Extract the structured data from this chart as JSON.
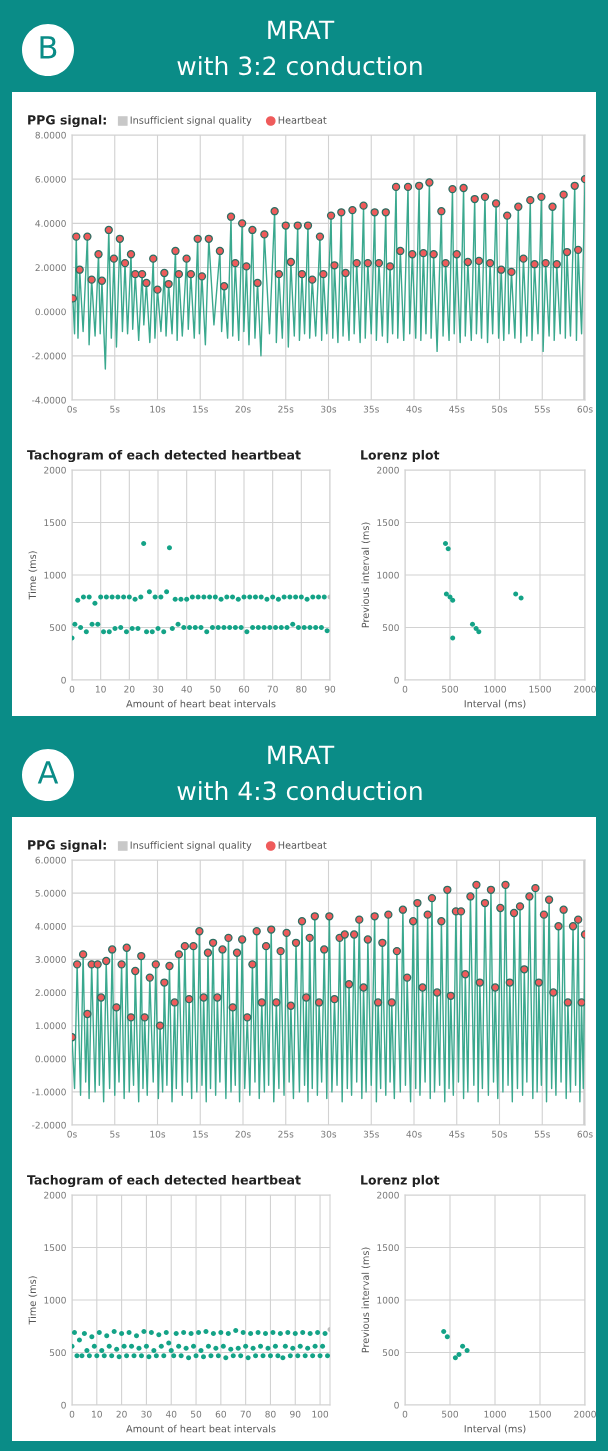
{
  "chart_data": [
    {
      "type": "line",
      "title": "PPG signal:",
      "legend": "top left",
      "grid": true,
      "xlim": [
        0,
        60
      ],
      "xticks": [
        {
          "value": 0,
          "label": "0s"
        },
        {
          "value": 5,
          "label": "5s"
        },
        {
          "value": 10,
          "label": "10s"
        },
        {
          "value": 15,
          "label": "15s"
        },
        {
          "value": 20,
          "label": "20s"
        },
        {
          "value": 25,
          "label": "25s"
        },
        {
          "value": 30,
          "label": "30s"
        },
        {
          "value": 35,
          "label": "35s"
        },
        {
          "value": 40,
          "label": "40s"
        },
        {
          "value": 45,
          "label": "45s"
        },
        {
          "value": 50,
          "label": "50s"
        },
        {
          "value": 55,
          "label": "55s"
        },
        {
          "value": 60,
          "label": "60s"
        }
      ],
      "ylim": [
        -4,
        8
      ],
      "yticks": [
        {
          "value": -4,
          "label": "-4.0000"
        },
        {
          "value": -2,
          "label": "-2.0000"
        },
        {
          "value": 0,
          "label": "0.0000"
        },
        {
          "value": 2,
          "label": "2.0000"
        },
        {
          "value": 4,
          "label": "4.0000"
        },
        {
          "value": 6,
          "label": "6.0000"
        },
        {
          "value": 8,
          "label": "8.0000"
        }
      ],
      "bands": [
        {
          "axis": "x",
          "from": 59.8,
          "to": 60,
          "label": "Insufficient signal quality",
          "color": "#c8c8c8"
        }
      ],
      "series": [
        {
          "type": "line",
          "color": "#3aa88e",
          "x": [
            0.1,
            0.3,
            0.5,
            0.7,
            0.9,
            1.3,
            1.8,
            2.0,
            2.3,
            2.7,
            3.1,
            3.3,
            3.5,
            3.9,
            4.3,
            4.6,
            4.9,
            5.2,
            5.6,
            5.9,
            6.2,
            6.5,
            6.9,
            7.1,
            7.4,
            7.8,
            8.2,
            8.4,
            8.7,
            9.1,
            9.5,
            9.7,
            10.0,
            10.4,
            10.8,
            11.0,
            11.3,
            11.7,
            12.1,
            12.3,
            12.5,
            12.9,
            13.4,
            13.6,
            13.9,
            14.3,
            14.7,
            14.9,
            15.2,
            15.6,
            16.0,
            16.6,
            17.3,
            17.5,
            17.8,
            18.2,
            18.6,
            18.8,
            19.1,
            19.5,
            19.9,
            20.1,
            20.4,
            20.7,
            21.1,
            21.4,
            21.7,
            22.1,
            22.5,
            23.1,
            23.7,
            23.9,
            24.2,
            24.6,
            25.0,
            25.3,
            25.6,
            26.0,
            26.4,
            26.6,
            26.9,
            27.2,
            27.6,
            27.8,
            28.1,
            28.5,
            29.0,
            29.2,
            29.4,
            29.8,
            30.3,
            30.5,
            30.7,
            31.1,
            31.5,
            31.7,
            32.0,
            32.4,
            32.8,
            33.0,
            33.3,
            33.7,
            34.1,
            34.3,
            34.6,
            35.0,
            35.4,
            35.6,
            35.9,
            36.3,
            36.7,
            36.9,
            37.2,
            37.5,
            37.9,
            38.1,
            38.4,
            38.8,
            39.3,
            39.5,
            39.8,
            40.2,
            40.6,
            40.8,
            41.1,
            41.4,
            41.8,
            42.0,
            42.3,
            42.7,
            43.2,
            43.4,
            43.7,
            44.1,
            44.5,
            44.7,
            45.0,
            45.4,
            45.8,
            46.0,
            46.3,
            46.7,
            47.1,
            47.3,
            47.6,
            47.9,
            48.3,
            48.6,
            48.9,
            49.2,
            49.6,
            49.9,
            50.2,
            50.5,
            50.9,
            51.1,
            51.4,
            51.8,
            52.2,
            52.5,
            52.8,
            53.2,
            53.6,
            53.8,
            54.1,
            54.5,
            54.9,
            55.1,
            55.4,
            55.8,
            56.2,
            56.4,
            56.7,
            57.1,
            57.5,
            57.7,
            57.9,
            58.3,
            58.8,
            59.0,
            59.2,
            59.6,
            60.0
          ],
          "values": [
            0.6,
            -1.0,
            3.4,
            -1.2,
            1.9,
            -0.9,
            3.4,
            -1.5,
            1.45,
            -1.1,
            2.6,
            -1.0,
            1.4,
            -2.6,
            3.7,
            -1.2,
            2.4,
            -1.6,
            3.3,
            -0.9,
            2.2,
            -1.0,
            2.6,
            -0.8,
            1.7,
            -1.3,
            1.7,
            -0.6,
            1.3,
            -1.4,
            2.4,
            -1.2,
            1.0,
            -0.9,
            1.75,
            -1.1,
            1.25,
            -1.0,
            2.75,
            -1.3,
            1.7,
            -1.1,
            2.4,
            -0.8,
            1.7,
            -1.2,
            3.3,
            -1.0,
            1.6,
            -1.5,
            3.3,
            -0.6,
            2.75,
            -0.9,
            1.15,
            -1.2,
            4.3,
            -1.1,
            2.2,
            -1.3,
            4.0,
            -0.9,
            2.05,
            -1.5,
            3.7,
            -1.2,
            1.3,
            -2.0,
            3.5,
            -1.0,
            4.55,
            -1.4,
            1.7,
            -1.2,
            3.9,
            -1.6,
            2.25,
            -1.1,
            3.9,
            -1.3,
            1.7,
            -1.0,
            3.9,
            -1.2,
            1.45,
            -1.1,
            3.4,
            -1.3,
            1.7,
            -1.0,
            4.35,
            -1.2,
            2.1,
            -1.4,
            4.5,
            -1.1,
            1.75,
            -1.3,
            4.6,
            -1.0,
            2.2,
            -1.4,
            4.8,
            -1.2,
            2.2,
            -1.0,
            4.5,
            -1.3,
            2.2,
            -1.1,
            4.5,
            -1.4,
            2.05,
            -1.0,
            5.65,
            -1.2,
            2.75,
            -1.3,
            5.65,
            -1.0,
            2.6,
            -1.2,
            5.7,
            -1.3,
            2.65,
            -1.0,
            5.85,
            -1.2,
            2.6,
            -1.8,
            4.55,
            -1.1,
            2.2,
            -1.3,
            5.55,
            -1.0,
            2.6,
            -1.4,
            5.6,
            -1.1,
            2.25,
            -1.3,
            5.1,
            -1.0,
            2.3,
            -1.2,
            5.2,
            -1.4,
            2.2,
            -1.0,
            4.9,
            -1.2,
            1.9,
            -1.3,
            4.35,
            -1.0,
            1.8,
            -1.2,
            4.75,
            -1.4,
            2.4,
            -1.1,
            5.05,
            -1.3,
            2.15,
            -1.0,
            5.2,
            -1.8,
            2.2,
            -1.1,
            4.75,
            -1.3,
            2.15,
            -1.0,
            5.3,
            -1.2,
            2.7,
            -1.1,
            5.7,
            -1.3,
            2.8,
            -1.0,
            6.0
          ]
        },
        {
          "name": "Heartbeat",
          "type": "scatter",
          "marker": "circle",
          "color": "#ef5b5b",
          "x": [
            0.1,
            0.5,
            0.9,
            1.8,
            2.3,
            3.1,
            3.5,
            4.3,
            4.9,
            5.6,
            6.2,
            6.9,
            7.4,
            8.2,
            8.7,
            9.5,
            10.0,
            10.8,
            11.3,
            12.1,
            12.5,
            13.4,
            13.9,
            14.7,
            15.2,
            16.0,
            17.3,
            17.8,
            18.6,
            19.1,
            19.9,
            20.4,
            21.1,
            21.7,
            22.5,
            23.7,
            24.2,
            25.0,
            25.6,
            26.4,
            26.9,
            27.6,
            28.1,
            29.0,
            29.4,
            30.3,
            30.7,
            31.5,
            32.0,
            32.8,
            33.3,
            34.1,
            34.6,
            35.4,
            35.9,
            36.7,
            37.2,
            37.9,
            38.4,
            39.3,
            39.8,
            40.6,
            41.1,
            41.8,
            42.3,
            43.2,
            43.7,
            44.5,
            45.0,
            45.8,
            46.3,
            47.1,
            47.6,
            48.3,
            48.9,
            49.6,
            50.2,
            50.9,
            51.4,
            52.2,
            52.8,
            53.6,
            54.1,
            54.9,
            55.4,
            56.2,
            56.7,
            57.5,
            57.9,
            58.8,
            59.2,
            60.0
          ],
          "values": [
            0.6,
            3.4,
            1.9,
            3.4,
            1.45,
            2.6,
            1.4,
            3.7,
            2.4,
            3.3,
            2.2,
            2.6,
            1.7,
            1.7,
            1.3,
            2.4,
            1.0,
            1.75,
            1.25,
            2.75,
            1.7,
            2.4,
            1.7,
            3.3,
            1.6,
            3.3,
            2.75,
            1.15,
            4.3,
            2.2,
            4.0,
            2.05,
            3.7,
            1.3,
            3.5,
            4.55,
            1.7,
            3.9,
            2.25,
            3.9,
            1.7,
            3.9,
            1.45,
            3.4,
            1.7,
            4.35,
            2.1,
            4.5,
            1.75,
            4.6,
            2.2,
            4.8,
            2.2,
            4.5,
            2.2,
            4.5,
            2.05,
            5.65,
            2.75,
            5.65,
            2.6,
            5.7,
            2.65,
            5.85,
            2.6,
            4.55,
            2.2,
            5.55,
            2.6,
            5.6,
            2.25,
            5.1,
            2.3,
            5.2,
            2.2,
            4.9,
            1.9,
            4.35,
            1.8,
            4.75,
            2.4,
            5.05,
            2.15,
            5.2,
            2.2,
            4.75,
            2.15,
            5.3,
            2.7,
            5.7,
            2.8,
            6.0
          ]
        }
      ],
      "annotations": [
        "B",
        "MRAT",
        "with 3:2 conduction"
      ]
    },
    {
      "type": "scatter",
      "title": "Tachogram of each detected heartbeat",
      "xlabel": "Amount of heart beat intervals",
      "ylabel": "Time (ms)",
      "grid": true,
      "marker": "circle",
      "xlim": [
        0,
        90
      ],
      "xticks": [
        0,
        10,
        20,
        30,
        40,
        50,
        60,
        70,
        80,
        90
      ],
      "ylim": [
        0,
        2000
      ],
      "yticks": [
        0,
        500,
        1000,
        1500,
        2000
      ],
      "series": [
        {
          "color": "#14a387",
          "x": [
            0,
            1,
            2,
            3,
            4,
            5,
            6,
            7,
            8,
            9,
            10,
            11,
            12,
            13,
            14,
            15,
            16,
            17,
            18,
            19,
            20,
            21,
            22,
            23,
            24,
            25,
            26,
            27,
            28,
            29,
            30,
            31,
            32,
            33,
            34,
            35,
            36,
            37,
            38,
            39,
            40,
            41,
            42,
            43,
            44,
            45,
            46,
            47,
            48,
            49,
            50,
            51,
            52,
            53,
            54,
            55,
            56,
            57,
            58,
            59,
            60,
            61,
            62,
            63,
            64,
            65,
            66,
            67,
            68,
            69,
            70,
            71,
            72,
            73,
            74,
            75,
            76,
            77,
            78,
            79,
            80,
            81,
            82,
            83,
            84,
            85,
            86,
            87,
            88,
            89
          ],
          "values": [
            400,
            530,
            760,
            500,
            790,
            460,
            790,
            530,
            730,
            530,
            790,
            460,
            790,
            460,
            790,
            490,
            790,
            500,
            790,
            460,
            790,
            490,
            770,
            490,
            790,
            1300,
            460,
            840,
            460,
            790,
            490,
            790,
            460,
            840,
            1260,
            490,
            770,
            530,
            770,
            500,
            770,
            500,
            790,
            500,
            790,
            500,
            790,
            460,
            790,
            500,
            790,
            500,
            770,
            500,
            790,
            500,
            790,
            500,
            770,
            500,
            790,
            460,
            790,
            500,
            790,
            500,
            790,
            500,
            770,
            500,
            790,
            500,
            770,
            500,
            790,
            500,
            790,
            530,
            790,
            500,
            790,
            500,
            770,
            500,
            790,
            500,
            790,
            500,
            790,
            470
          ]
        },
        {
          "color": "#bdbdbd",
          "x": [
            90
          ],
          "values": [
            790
          ]
        }
      ]
    },
    {
      "type": "scatter",
      "title": "Lorenz plot",
      "xlabel": "Interval (ms)",
      "ylabel": "Previous interval (ms)",
      "grid": true,
      "marker": "circle",
      "xlim": [
        0,
        2000
      ],
      "xticks": [
        0,
        500,
        1000,
        1500,
        2000
      ],
      "ylim": [
        0,
        2000
      ],
      "yticks": [
        0,
        500,
        1000,
        1500,
        2000
      ],
      "series": [
        {
          "color": "#14a387",
          "x": [
            460,
            500,
            530,
            750,
            790,
            820,
            1230,
            1290,
            450,
            480,
            530
          ],
          "values": [
            820,
            790,
            760,
            530,
            490,
            460,
            820,
            780,
            1300,
            1250,
            400
          ]
        }
      ]
    },
    {
      "type": "line",
      "title": "PPG signal:",
      "legend": "top left",
      "grid": true,
      "xlim": [
        0,
        60
      ],
      "xticks": [
        {
          "value": 0,
          "label": "0s"
        },
        {
          "value": 5,
          "label": "5s"
        },
        {
          "value": 10,
          "label": "10s"
        },
        {
          "value": 15,
          "label": "15s"
        },
        {
          "value": 20,
          "label": "20s"
        },
        {
          "value": 25,
          "label": "25s"
        },
        {
          "value": 30,
          "label": "30s"
        },
        {
          "value": 35,
          "label": "35s"
        },
        {
          "value": 40,
          "label": "40s"
        },
        {
          "value": 45,
          "label": "45s"
        },
        {
          "value": 50,
          "label": "50s"
        },
        {
          "value": 55,
          "label": "55s"
        },
        {
          "value": 60,
          "label": "60s"
        }
      ],
      "ylim": [
        -2,
        6
      ],
      "yticks": [
        {
          "value": -2,
          "label": "-2.0000"
        },
        {
          "value": -1,
          "label": "-1.0000"
        },
        {
          "value": 0,
          "label": "0.0000"
        },
        {
          "value": 1,
          "label": "1.0000"
        },
        {
          "value": 2,
          "label": "2.0000"
        },
        {
          "value": 3,
          "label": "3.0000"
        },
        {
          "value": 4,
          "label": "4.0000"
        },
        {
          "value": 5,
          "label": "5.0000"
        },
        {
          "value": 6,
          "label": "6.0000"
        }
      ],
      "bands": [
        {
          "axis": "x",
          "from": 59.8,
          "to": 60,
          "label": "Insufficient signal quality",
          "color": "#c8c8c8"
        }
      ],
      "series": [
        {
          "type": "line",
          "color": "#3aa88e",
          "x": [
            0.0,
            0.3,
            0.6,
            1.0,
            1.3,
            1.6,
            1.8,
            2.0,
            2.3,
            2.7,
            3.0,
            3.2,
            3.4,
            3.7,
            4.0,
            4.4,
            4.7,
            5.0,
            5.2,
            5.5,
            5.8,
            6.1,
            6.4,
            6.7,
            6.9,
            7.2,
            7.4,
            7.8,
            8.1,
            8.3,
            8.5,
            8.8,
            9.1,
            9.5,
            9.8,
            10.1,
            10.3,
            10.6,
            10.8,
            11.1,
            11.4,
            11.7,
            12.0,
            12.2,
            12.5,
            12.9,
            13.2,
            13.5,
            13.7,
            14.0,
            14.2,
            14.6,
            14.9,
            15.2,
            15.4,
            15.7,
            15.9,
            16.2,
            16.5,
            16.8,
            17.0,
            17.3,
            17.6,
            18.0,
            18.3,
            18.6,
            18.8,
            19.1,
            19.3,
            19.6,
            19.9,
            20.2,
            20.5,
            20.8,
            21.1,
            21.4,
            21.6,
            21.9,
            22.2,
            22.5,
            22.7,
            23.0,
            23.3,
            23.6,
            23.9,
            24.2,
            24.4,
            24.8,
            25.1,
            25.4,
            25.6,
            25.9,
            26.2,
            26.6,
            26.9,
            27.2,
            27.4,
            27.6,
            27.8,
            28.1,
            28.4,
            28.7,
            28.9,
            29.2,
            29.5,
            29.8,
            30.1,
            30.4,
            30.7,
            31.0,
            31.3,
            31.6,
            31.9,
            32.2,
            32.4,
            32.7,
            33.0,
            33.3,
            33.6,
            33.9,
            34.1,
            34.4,
            34.6,
            35.0,
            35.4,
            35.6,
            35.8,
            36.1,
            36.3,
            36.7,
            37.0,
            37.2,
            37.4,
            37.7,
            38.0,
            38.4,
            38.7,
            39.0,
            39.2,
            39.6,
            39.9,
            40.2,
            40.4,
            40.7,
            41.0,
            41.3,
            41.6,
            41.9,
            42.1,
            42.4,
            42.7,
            43.0,
            43.2,
            43.6,
            43.9,
            44.1,
            44.3,
            44.6,
            44.9,
            45.2,
            45.5,
            45.8,
            46.0,
            46.3,
            46.6,
            47.0,
            47.3,
            47.5,
            47.7,
            48.0,
            48.3,
            48.7,
            49.0,
            49.3,
            49.5,
            49.8,
            50.1,
            50.4,
            50.7,
            51.0,
            51.2,
            51.5,
            51.7,
            52.1,
            52.4,
            52.7,
            52.9,
            53.2,
            53.5,
            53.9,
            54.2,
            54.4,
            54.6,
            54.9,
            55.2,
            55.5,
            55.8,
            56.1,
            56.3,
            56.6,
            56.9,
            57.2,
            57.5,
            57.8,
            58.0,
            58.3,
            58.6,
            58.9,
            59.2,
            59.4,
            59.6,
            59.8,
            60.0
          ],
          "values": [
            0.65,
            -0.9,
            2.85,
            -1.1,
            3.15,
            -0.7,
            1.35,
            -1.2,
            2.85,
            -1.0,
            2.85,
            -0.8,
            1.85,
            -1.3,
            2.95,
            -0.9,
            3.3,
            -1.1,
            1.55,
            -0.7,
            2.85,
            -1.2,
            3.35,
            -1.0,
            1.25,
            -0.8,
            2.65,
            -1.3,
            3.1,
            -0.9,
            1.25,
            -1.1,
            2.45,
            -0.7,
            2.85,
            -1.2,
            1.0,
            -1.0,
            2.3,
            -0.8,
            2.8,
            -1.3,
            1.7,
            -0.9,
            3.15,
            -1.1,
            3.4,
            -0.7,
            1.8,
            -1.2,
            3.4,
            -1.0,
            3.85,
            -0.8,
            1.85,
            -1.3,
            3.2,
            -0.9,
            3.5,
            -1.1,
            1.85,
            -0.7,
            3.3,
            -1.2,
            3.65,
            -1.0,
            1.55,
            -0.8,
            3.2,
            -1.3,
            3.6,
            -0.9,
            1.25,
            -1.1,
            2.85,
            -0.7,
            3.85,
            -1.2,
            1.7,
            -1.0,
            3.4,
            -0.8,
            3.9,
            -1.3,
            1.7,
            -0.9,
            3.25,
            -1.1,
            3.8,
            -0.7,
            1.6,
            -1.2,
            3.5,
            -1.0,
            4.15,
            -0.8,
            1.85,
            -1.3,
            3.65,
            -0.9,
            4.3,
            -1.1,
            1.7,
            -0.7,
            3.3,
            -1.2,
            4.3,
            -1.0,
            1.8,
            -0.8,
            3.65,
            -1.3,
            3.75,
            -0.9,
            2.25,
            -1.1,
            3.75,
            -0.7,
            4.2,
            -1.2,
            2.15,
            -1.0,
            3.6,
            -0.8,
            4.3,
            -1.3,
            1.7,
            -0.9,
            3.5,
            -1.1,
            4.35,
            -0.7,
            1.7,
            -1.2,
            3.25,
            -1.0,
            4.5,
            -0.8,
            2.45,
            -1.3,
            4.15,
            -0.9,
            4.7,
            -1.1,
            2.15,
            -0.7,
            4.35,
            -1.2,
            4.85,
            -1.0,
            2.0,
            -0.8,
            4.15,
            -1.3,
            5.1,
            -0.9,
            1.9,
            -1.1,
            4.45,
            -0.7,
            4.45,
            -1.2,
            2.55,
            -1.0,
            4.9,
            -0.8,
            5.25,
            -1.3,
            2.3,
            -0.9,
            4.7,
            -1.1,
            5.1,
            -0.7,
            2.15,
            -1.2,
            4.55,
            -1.0,
            5.25,
            -0.8,
            2.3,
            -1.3,
            4.4,
            -0.9,
            4.6,
            -1.1,
            2.7,
            -0.7,
            4.9,
            -1.2,
            5.15,
            -1.0,
            2.3,
            -0.8,
            4.35,
            -1.3,
            4.8,
            -0.9,
            2.0,
            -1.1,
            4.0,
            -0.7,
            4.5,
            -1.2,
            1.7,
            -1.0,
            4.0,
            -0.8,
            4.2,
            -1.3,
            1.7,
            -0.9,
            3.75
          ]
        },
        {
          "name": "Heartbeat",
          "type": "scatter",
          "marker": "circle",
          "color": "#ef5b5b",
          "x": [
            0.0,
            0.6,
            1.3,
            1.8,
            2.3,
            3.0,
            3.4,
            4.0,
            4.7,
            5.2,
            5.8,
            6.4,
            6.9,
            7.4,
            8.1,
            8.5,
            9.1,
            9.8,
            10.3,
            10.8,
            11.4,
            12.0,
            12.5,
            13.2,
            13.7,
            14.2,
            14.9,
            15.4,
            15.9,
            16.5,
            17.0,
            17.6,
            18.3,
            18.8,
            19.3,
            19.9,
            20.5,
            21.1,
            21.6,
            22.2,
            22.7,
            23.3,
            23.9,
            24.4,
            25.1,
            25.6,
            26.2,
            26.9,
            27.4,
            27.8,
            28.4,
            28.9,
            29.5,
            30.1,
            30.7,
            31.3,
            31.9,
            32.4,
            33.0,
            33.6,
            34.1,
            34.6,
            35.4,
            35.8,
            36.3,
            37.0,
            37.4,
            38.0,
            38.7,
            39.2,
            39.9,
            40.4,
            41.0,
            41.6,
            42.1,
            42.7,
            43.2,
            43.9,
            44.3,
            44.9,
            45.5,
            46.0,
            46.6,
            47.3,
            47.7,
            48.3,
            49.0,
            49.5,
            50.1,
            50.7,
            51.2,
            51.7,
            52.4,
            52.9,
            53.5,
            54.2,
            54.6,
            55.2,
            55.8,
            56.3,
            56.9,
            57.5,
            58.0,
            58.6,
            59.2,
            59.6,
            60.0
          ],
          "values": [
            0.65,
            2.85,
            3.15,
            1.35,
            2.85,
            2.85,
            1.85,
            2.95,
            3.3,
            1.55,
            2.85,
            3.35,
            1.25,
            2.65,
            3.1,
            1.25,
            2.45,
            2.85,
            1.0,
            2.3,
            2.8,
            1.7,
            3.15,
            3.4,
            1.8,
            3.4,
            3.85,
            1.85,
            3.2,
            3.5,
            1.85,
            3.3,
            3.65,
            1.55,
            3.2,
            3.6,
            1.25,
            2.85,
            3.85,
            1.7,
            3.4,
            3.9,
            1.7,
            3.25,
            3.8,
            1.6,
            3.5,
            4.15,
            1.85,
            3.65,
            4.3,
            1.7,
            3.3,
            4.3,
            1.8,
            3.65,
            3.75,
            2.25,
            3.75,
            4.2,
            2.15,
            3.6,
            4.3,
            1.7,
            3.5,
            4.35,
            1.7,
            3.25,
            4.5,
            2.45,
            4.15,
            4.7,
            2.15,
            4.35,
            4.85,
            2.0,
            4.15,
            5.1,
            1.9,
            4.45,
            4.45,
            2.55,
            4.9,
            5.25,
            2.3,
            4.7,
            5.1,
            2.15,
            4.55,
            5.25,
            2.3,
            4.4,
            4.6,
            2.7,
            4.9,
            5.15,
            2.3,
            4.35,
            4.8,
            2.0,
            4.0,
            4.5,
            1.7,
            4.0,
            4.2,
            1.7,
            3.75
          ]
        }
      ],
      "annotations": [
        "A",
        "MRAT",
        "with 4:3 conduction"
      ]
    },
    {
      "type": "scatter",
      "title": "Tachogram of each detected heartbeat",
      "xlabel": "Amount of heart beat intervals",
      "ylabel": "Time (ms)",
      "grid": true,
      "marker": "circle",
      "xlim": [
        0,
        104
      ],
      "xticks": [
        0,
        10,
        20,
        30,
        40,
        50,
        60,
        70,
        80,
        90,
        100
      ],
      "ylim": [
        0,
        2000
      ],
      "yticks": [
        0,
        500,
        1000,
        1500,
        2000
      ],
      "series": [
        {
          "color": "#14a387",
          "x": [
            0,
            1,
            2,
            3,
            4,
            5,
            6,
            7,
            8,
            9,
            10,
            11,
            12,
            13,
            14,
            15,
            16,
            17,
            18,
            19,
            20,
            21,
            22,
            23,
            24,
            25,
            26,
            27,
            28,
            29,
            30,
            31,
            32,
            33,
            34,
            35,
            36,
            37,
            38,
            39,
            40,
            41,
            42,
            43,
            44,
            45,
            46,
            47,
            48,
            49,
            50,
            51,
            52,
            53,
            54,
            55,
            56,
            57,
            58,
            59,
            60,
            61,
            62,
            63,
            64,
            65,
            66,
            67,
            68,
            69,
            70,
            71,
            72,
            73,
            74,
            75,
            76,
            77,
            78,
            79,
            80,
            81,
            82,
            83,
            84,
            85,
            86,
            87,
            88,
            89,
            90,
            91,
            92,
            93,
            94,
            95,
            96,
            97,
            98,
            99,
            100,
            101,
            102,
            103
          ],
          "values": [
            560,
            690,
            470,
            620,
            470,
            680,
            520,
            470,
            650,
            560,
            470,
            690,
            520,
            470,
            660,
            560,
            470,
            700,
            530,
            460,
            680,
            560,
            470,
            690,
            560,
            470,
            660,
            540,
            470,
            700,
            560,
            460,
            690,
            520,
            470,
            670,
            560,
            470,
            690,
            590,
            520,
            470,
            680,
            560,
            470,
            690,
            540,
            450,
            680,
            560,
            470,
            690,
            520,
            460,
            700,
            560,
            470,
            680,
            540,
            470,
            690,
            560,
            450,
            680,
            530,
            470,
            710,
            540,
            470,
            690,
            560,
            450,
            680,
            540,
            470,
            690,
            560,
            470,
            680,
            540,
            470,
            690,
            560,
            470,
            680,
            450,
            560,
            690,
            470,
            540,
            680,
            470,
            560,
            690,
            470,
            540,
            680,
            470,
            560,
            690,
            470,
            560,
            680,
            470
          ]
        },
        {
          "color": "#bdbdbd",
          "x": [
            104
          ],
          "values": [
            720
          ]
        }
      ]
    },
    {
      "type": "scatter",
      "title": "Lorenz plot",
      "xlabel": "Interval (ms)",
      "ylabel": "Previous interval (ms)",
      "grid": true,
      "marker": "circle",
      "xlim": [
        0,
        2000
      ],
      "xticks": [
        0,
        500,
        1000,
        1500,
        2000
      ],
      "ylim": [
        0,
        2000
      ],
      "yticks": [
        0,
        500,
        1000,
        1500,
        2000
      ],
      "series": [
        {
          "color": "#14a387",
          "x": [
            430,
            470,
            640,
            690,
            560,
            600
          ],
          "values": [
            700,
            650,
            560,
            520,
            450,
            480
          ]
        }
      ]
    }
  ]
}
